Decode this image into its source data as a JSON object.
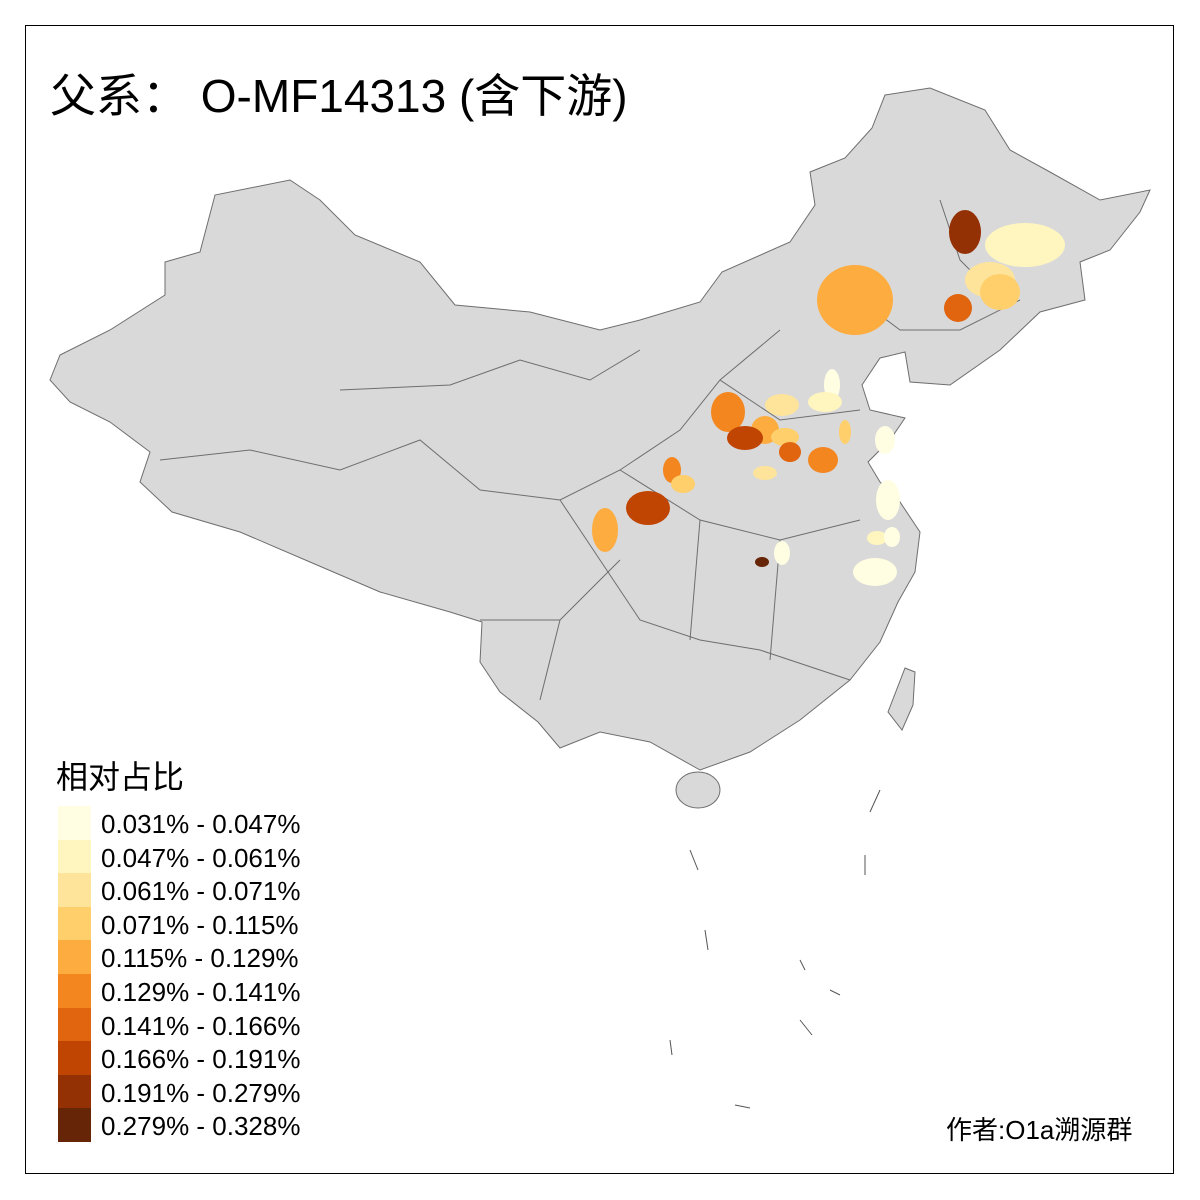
{
  "title": "父系： O-MF14313 (含下游)",
  "legend": {
    "title": "相对占比",
    "items": [
      {
        "label": "0.031% - 0.047%",
        "color": "#FFFEE3"
      },
      {
        "label": "0.047% - 0.061%",
        "color": "#FFF5BE"
      },
      {
        "label": "0.061% - 0.071%",
        "color": "#FEE49A"
      },
      {
        "label": "0.071% - 0.115%",
        "color": "#FECF6A"
      },
      {
        "label": "0.115% - 0.129%",
        "color": "#FDAC3F"
      },
      {
        "label": "0.129% - 0.141%",
        "color": "#F3861F"
      },
      {
        "label": "0.141% - 0.166%",
        "color": "#E1640F"
      },
      {
        "label": "0.166% - 0.191%",
        "color": "#C04402"
      },
      {
        "label": "0.191% - 0.279%",
        "color": "#933004"
      },
      {
        "label": "0.279% - 0.328%",
        "color": "#662506"
      }
    ]
  },
  "map": {
    "base_color": "#D9D9D9",
    "border_color": "#6E6E6E",
    "region_classes": [
      8,
      1,
      2,
      3,
      6,
      4,
      0,
      1,
      2,
      5,
      4,
      7,
      3,
      6,
      5,
      3,
      0,
      2,
      5,
      3,
      7,
      4,
      9,
      0,
      0,
      1,
      0,
      0
    ]
  },
  "author": "作者:O1a溯源群"
}
